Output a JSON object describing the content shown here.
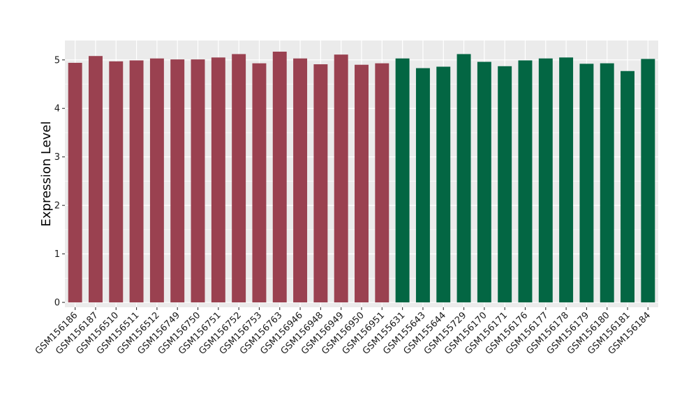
{
  "chart_data": {
    "type": "bar",
    "title": "",
    "xlabel": "",
    "ylabel": "Expression Level",
    "ylim": [
      -0.1,
      5.4
    ],
    "y_ticks": [
      0,
      1,
      2,
      3,
      4,
      5
    ],
    "grid": true,
    "categories": [
      "GSM156186",
      "GSM156187",
      "GSM156510",
      "GSM156511",
      "GSM156512",
      "GSM156749",
      "GSM156750",
      "GSM156751",
      "GSM156752",
      "GSM156753",
      "GSM156763",
      "GSM156946",
      "GSM156948",
      "GSM156949",
      "GSM156950",
      "GSM156951",
      "GSM155631",
      "GSM155643",
      "GSM155644",
      "GSM155729",
      "GSM156170",
      "GSM156171",
      "GSM156176",
      "GSM156177",
      "GSM156178",
      "GSM156179",
      "GSM156180",
      "GSM156181",
      "GSM156184"
    ],
    "values": [
      4.94,
      5.08,
      4.97,
      4.99,
      5.03,
      5.01,
      5.01,
      5.05,
      5.12,
      4.93,
      5.17,
      5.03,
      4.91,
      5.11,
      4.9,
      4.93,
      5.03,
      4.83,
      4.86,
      5.12,
      4.96,
      4.87,
      4.99,
      5.03,
      5.05,
      4.92,
      4.93,
      4.77,
      5.02
    ],
    "bar_colors": [
      "#9a4150",
      "#9a4150",
      "#9a4150",
      "#9a4150",
      "#9a4150",
      "#9a4150",
      "#9a4150",
      "#9a4150",
      "#9a4150",
      "#9a4150",
      "#9a4150",
      "#9a4150",
      "#9a4150",
      "#9a4150",
      "#9a4150",
      "#9a4150",
      "#036643",
      "#036643",
      "#036643",
      "#036643",
      "#036643",
      "#036643",
      "#036643",
      "#036643",
      "#036643",
      "#036643",
      "#036643",
      "#036643",
      "#036643"
    ],
    "panel_background": "#ebebeb",
    "grid_color": "#ffffff"
  }
}
